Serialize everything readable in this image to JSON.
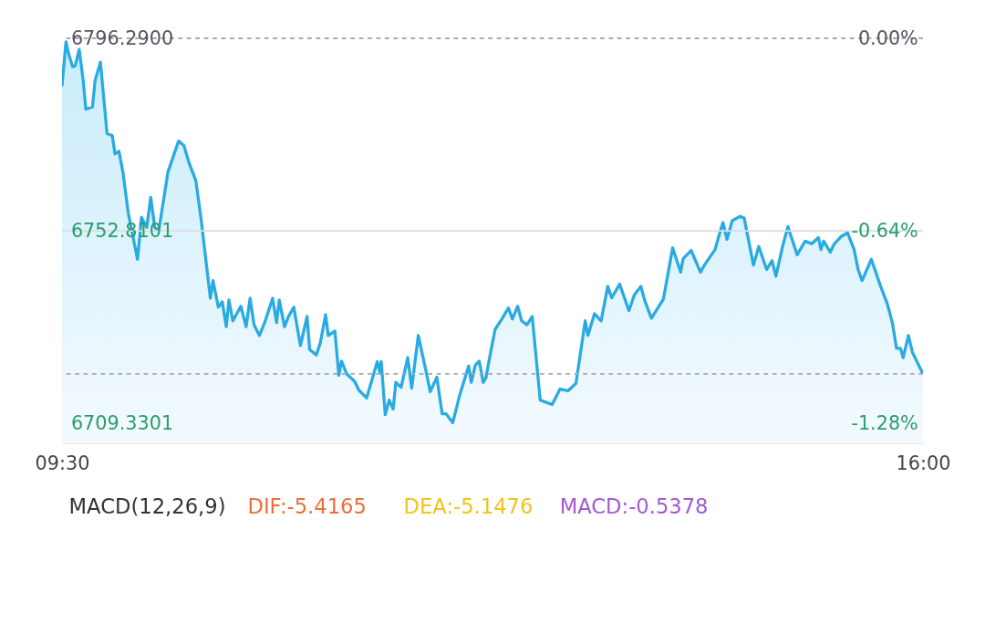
{
  "chart_data": [
    {
      "type": "area",
      "x": [
        9.5,
        9.53,
        9.55,
        9.58,
        9.6,
        9.63,
        9.66,
        9.68,
        9.73,
        9.75,
        9.79,
        9.84,
        9.88,
        9.9,
        9.93,
        9.96,
        10.0,
        10.07,
        10.1,
        10.14,
        10.17,
        10.2,
        10.23,
        10.3,
        10.38,
        10.42,
        10.46,
        10.51,
        10.55,
        10.62,
        10.64,
        10.68,
        10.71,
        10.74,
        10.76,
        10.79,
        10.85,
        10.89,
        10.92,
        10.95,
        10.99,
        11.03,
        11.09,
        11.12,
        11.14,
        11.18,
        11.21,
        11.25,
        11.3,
        11.35,
        11.37,
        11.42,
        11.45,
        11.49,
        11.51,
        11.56,
        11.59,
        11.61,
        11.65,
        11.71,
        11.74,
        11.8,
        11.88,
        11.9,
        11.91,
        11.94,
        11.97,
        12.0,
        12.02,
        12.06,
        12.11,
        12.14,
        12.19,
        12.24,
        12.28,
        12.33,
        12.37,
        12.4,
        12.45,
        12.5,
        12.57,
        12.59,
        12.62,
        12.65,
        12.68,
        12.7,
        12.74,
        12.77,
        12.82,
        12.87,
        12.9,
        12.94,
        12.97,
        13.01,
        13.05,
        13.11,
        13.2,
        13.26,
        13.32,
        13.38,
        13.45,
        13.47,
        13.52,
        13.57,
        13.62,
        13.65,
        13.71,
        13.78,
        13.82,
        13.87,
        13.9,
        13.95,
        14.04,
        14.11,
        14.17,
        14.19,
        14.25,
        14.32,
        14.35,
        14.43,
        14.46,
        14.49,
        14.52,
        14.56,
        14.62,
        14.65,
        14.72,
        14.76,
        14.82,
        14.86,
        14.89,
        14.94,
        14.98,
        15.05,
        15.11,
        15.16,
        15.21,
        15.23,
        15.25,
        15.3,
        15.33,
        15.38,
        15.43,
        15.48,
        15.51,
        15.54,
        15.61,
        15.68,
        15.73,
        15.77,
        15.8,
        15.83,
        15.85,
        15.89,
        15.92,
        16.0
      ],
      "series": [
        {
          "color": "#29abe2",
          "values": [
            6785.5,
            6795.5,
            6792.8,
            6789.9,
            6790.1,
            6793.8,
            6786.8,
            6780.3,
            6780.8,
            6786.8,
            6790.9,
            6774.8,
            6774.3,
            6770.2,
            6770.8,
            6766.1,
            6756.9,
            6746.4,
            6755.9,
            6753.6,
            6760.4,
            6753.6,
            6752.8,
            6766.1,
            6773.1,
            6772.1,
            6768.1,
            6764.2,
            6755.5,
            6737.6,
            6741.6,
            6735.6,
            6736.8,
            6731.2,
            6737.2,
            6732.5,
            6735.8,
            6731.2,
            6737.6,
            6731.6,
            6729.2,
            6732.1,
            6737.6,
            6732.1,
            6737.2,
            6731.2,
            6733.5,
            6735.6,
            6726.9,
            6733.5,
            6726.0,
            6724.8,
            6727.5,
            6733.9,
            6729.2,
            6730.2,
            6720.2,
            6723.4,
            6720.5,
            6718.8,
            6716.9,
            6715.1,
            6723.3,
            6720.9,
            6723.3,
            6711.3,
            6714.6,
            6712.6,
            6718.6,
            6717.5,
            6724.2,
            6717.3,
            6729.2,
            6722.3,
            6716.5,
            6719.8,
            6711.5,
            6711.5,
            6709.5,
            6715.5,
            6722.3,
            6718.6,
            6722.5,
            6723.4,
            6718.6,
            6719.6,
            6726.1,
            6730.6,
            6732.9,
            6735.4,
            6732.9,
            6735.8,
            6732.5,
            6731.6,
            6733.5,
            6714.6,
            6713.6,
            6717.1,
            6716.7,
            6718.4,
            6732.5,
            6729.2,
            6734.1,
            6732.5,
            6740.3,
            6737.7,
            6740.8,
            6734.8,
            6738.3,
            6740.3,
            6737.0,
            6733.1,
            6737.4,
            6749.0,
            6743.5,
            6746.6,
            6748.4,
            6743.5,
            6745.1,
            6748.6,
            6751.8,
            6754.7,
            6750.9,
            6755.1,
            6756.1,
            6755.7,
            6745.1,
            6749.3,
            6744.1,
            6746.1,
            6742.6,
            6749.3,
            6753.8,
            6747.4,
            6750.5,
            6749.9,
            6751.3,
            6748.6,
            6750.5,
            6748.0,
            6749.9,
            6751.5,
            6752.4,
            6748.6,
            6744.1,
            6741.6,
            6746.4,
            6740.3,
            6736.4,
            6731.9,
            6726.3,
            6726.3,
            6724.2,
            6729.2,
            6725.4,
            6720.5
          ]
        }
      ],
      "xlim": [
        9.5,
        16
      ],
      "xticks": [
        {
          "value": 9.5,
          "label": "09:30"
        },
        {
          "value": 16,
          "label": "16:00"
        }
      ],
      "ylim": [
        6704.9,
        6796.29
      ],
      "yticks": [
        {
          "value": 6796.29,
          "label": "6796.2900"
        },
        {
          "value": 6752.8101,
          "label": "6752.8101"
        },
        {
          "value": 6709.3301,
          "label": "6709.3301"
        }
      ],
      "y2lim": [
        -1.345,
        0
      ],
      "y2ticks": [
        {
          "value": 0,
          "label": "0.00%"
        },
        {
          "value": -0.64,
          "label": "-0.64%"
        },
        {
          "value": -1.28,
          "label": "-1.28%"
        }
      ],
      "ref_lines": [
        {
          "axis": "y",
          "value": 6796.29,
          "line_style": "dashed",
          "color": "#a8a8b0"
        },
        {
          "axis": "y",
          "value": 6752.81,
          "line_style": "solid",
          "color": "#dddddd"
        },
        {
          "axis": "y",
          "value": 6720.54,
          "line_style": "dashed",
          "color": "#a8a8b0"
        }
      ],
      "grid": false,
      "marker": "none",
      "line_style": "solid"
    },
    {
      "type": "other",
      "title": "MACD(12,26,9)",
      "annotations": [
        "DIF:-5.4165",
        "DEA:-5.1476",
        "MACD:-0.5378"
      ],
      "colors": [
        "#ec6f3a",
        "#f0c419",
        "#a45ad3"
      ]
    }
  ]
}
